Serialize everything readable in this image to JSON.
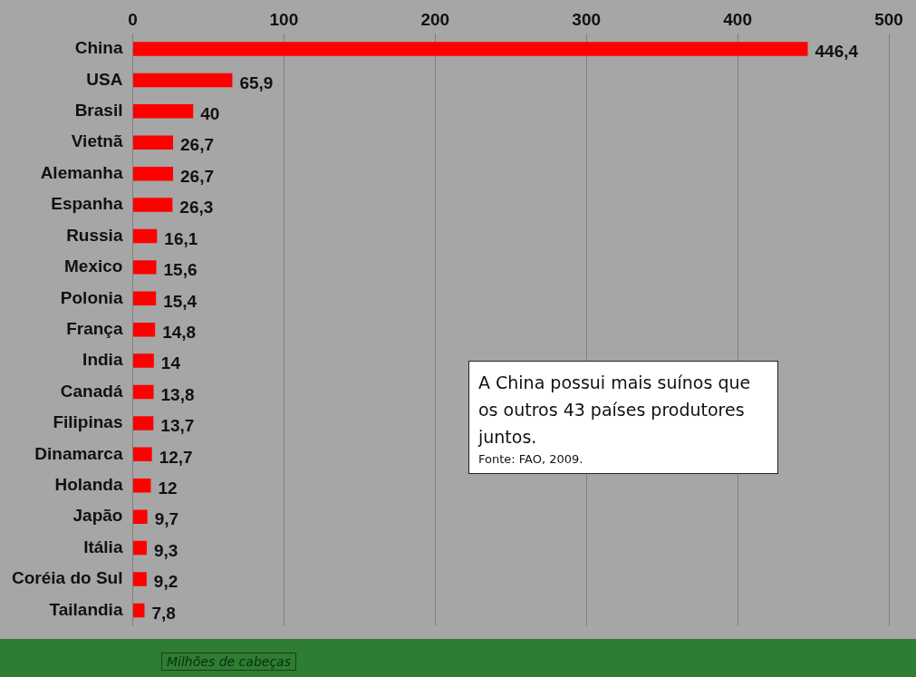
{
  "chart_data": {
    "type": "bar",
    "orientation": "horizontal",
    "xlabel": "Milhões de cabeças",
    "categories": [
      "China",
      "USA",
      "Brasil",
      "Vietnã",
      "Alemanha",
      "Espanha",
      "Russia",
      "Mexico",
      "Polonia",
      "França",
      "India",
      "Canadá",
      "Filipinas",
      "Dinamarca",
      "Holanda",
      "Japão",
      "Itália",
      "Coréia do Sul",
      "Tailandia"
    ],
    "values": [
      446.4,
      65.9,
      40,
      26.7,
      26.7,
      26.3,
      16.1,
      15.6,
      15.4,
      14.8,
      14,
      13.8,
      13.7,
      12.7,
      12,
      9.7,
      9.3,
      9.2,
      7.8
    ],
    "value_labels": [
      "446,4",
      "65,9",
      "40",
      "26,7",
      "26,7",
      "26,3",
      "16,1",
      "15,6",
      "15,4",
      "14,8",
      "14",
      "13,8",
      "13,7",
      "12,7",
      "12",
      "9,7",
      "9,3",
      "9,2",
      "7,8"
    ],
    "color": "#ff0000",
    "xlim": [
      0,
      500
    ],
    "xticks": [
      0,
      100,
      200,
      300,
      400,
      500
    ],
    "grid": "x",
    "legend": false,
    "annotations": [
      "A China possui mais suínos que os outros 43 países produtores juntos.",
      "Fonte: FAO, 2009."
    ]
  }
}
